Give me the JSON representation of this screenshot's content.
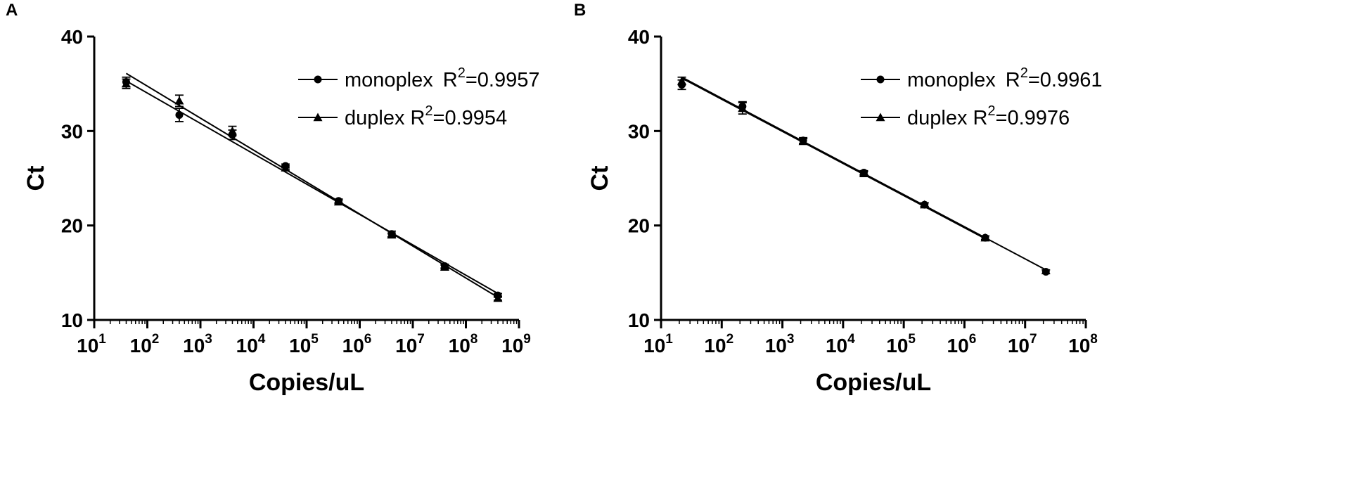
{
  "chart_data": [
    {
      "panel_label": "A",
      "type": "scatter",
      "x_scale": "log10",
      "xlabel": "Copies/uL",
      "ylabel": "Ct",
      "xlim": [
        10,
        1000000000
      ],
      "ylim": [
        10,
        40
      ],
      "x_ticks": [
        {
          "base": "10",
          "exp": "1"
        },
        {
          "base": "10",
          "exp": "2"
        },
        {
          "base": "10",
          "exp": "3"
        },
        {
          "base": "10",
          "exp": "4"
        },
        {
          "base": "10",
          "exp": "5"
        },
        {
          "base": "10",
          "exp": "6"
        },
        {
          "base": "10",
          "exp": "7"
        },
        {
          "base": "10",
          "exp": "8"
        },
        {
          "base": "10",
          "exp": "9"
        }
      ],
      "y_ticks": [
        "10",
        "20",
        "30",
        "40"
      ],
      "grid": false,
      "legend_position": "top-right",
      "series": [
        {
          "name": "monoplex",
          "r2_prefix": "R",
          "r2_sup": "2",
          "r2_value": "=0.9957",
          "marker": "circle",
          "x": [
            40,
            400,
            4000,
            40000,
            400000,
            4000000,
            40000000,
            400000000
          ],
          "y": [
            35.2,
            31.7,
            29.6,
            26.3,
            22.6,
            19.1,
            15.7,
            12.6
          ],
          "error": [
            0.5,
            0.7,
            0.5,
            0.2,
            0.2,
            0.3,
            0.2,
            0.2
          ],
          "fit": {
            "x": [
              40,
              400000000
            ],
            "y": [
              35.3,
              12.8
            ]
          }
        },
        {
          "name": "duplex",
          "r2_prefix": "R",
          "r2_sup": "2",
          "r2_value": "=0.9954",
          "marker": "triangle",
          "x": [
            40,
            400,
            4000,
            40000,
            400000,
            4000000,
            40000000,
            400000000
          ],
          "y": [
            35.0,
            33.2,
            30.0,
            26.1,
            22.5,
            19.0,
            15.6,
            12.3
          ],
          "error": [
            0.5,
            0.6,
            0.5,
            0.2,
            0.2,
            0.2,
            0.2,
            0.2
          ],
          "fit": {
            "x": [
              40,
              400000000
            ],
            "y": [
              36.1,
              12.4
            ]
          }
        }
      ]
    },
    {
      "panel_label": "B",
      "type": "scatter",
      "x_scale": "log10",
      "xlabel": "Copies/uL",
      "ylabel": "Ct",
      "xlim": [
        10,
        100000000
      ],
      "ylim": [
        10,
        40
      ],
      "x_ticks": [
        {
          "base": "10",
          "exp": "1"
        },
        {
          "base": "10",
          "exp": "2"
        },
        {
          "base": "10",
          "exp": "3"
        },
        {
          "base": "10",
          "exp": "4"
        },
        {
          "base": "10",
          "exp": "5"
        },
        {
          "base": "10",
          "exp": "6"
        },
        {
          "base": "10",
          "exp": "7"
        },
        {
          "base": "10",
          "exp": "8"
        }
      ],
      "y_ticks": [
        "10",
        "20",
        "30",
        "40"
      ],
      "grid": false,
      "legend_position": "top-right",
      "series": [
        {
          "name": "monoplex",
          "r2_prefix": "R",
          "r2_sup": "2",
          "r2_value": "=0.9961",
          "marker": "circle",
          "x": [
            22,
            220,
            2200,
            22000,
            220000,
            2200000,
            22000000
          ],
          "y": [
            34.9,
            32.6,
            29.0,
            25.6,
            22.2,
            18.7,
            15.1
          ],
          "error": [
            0.5,
            0.5,
            0.3,
            0.2,
            0.2,
            0.2,
            0.2
          ],
          "fit": {
            "x": [
              22,
              22000000
            ],
            "y": [
              35.7,
              15.3
            ]
          }
        },
        {
          "name": "duplex",
          "r2_prefix": "R",
          "r2_sup": "2",
          "r2_value": "=0.9976",
          "marker": "triangle",
          "x": [
            22,
            220,
            2200,
            22000,
            220000,
            2200000
          ],
          "y": [
            35.3,
            32.4,
            28.9,
            25.5,
            22.2,
            18.7
          ],
          "error": [
            0.4,
            0.6,
            0.3,
            0.2,
            0.2,
            0.2
          ],
          "fit": {
            "x": [
              22,
              2200000
            ],
            "y": [
              35.6,
              18.6
            ]
          }
        }
      ]
    }
  ]
}
